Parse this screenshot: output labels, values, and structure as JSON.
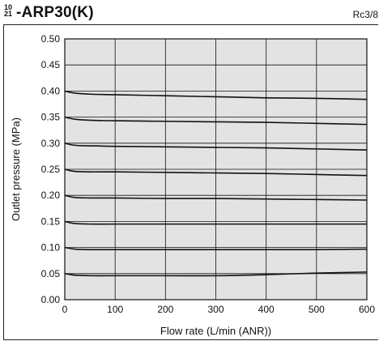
{
  "header": {
    "superscript": "10",
    "subscript": "21",
    "dash": "-",
    "model": "ARP30(K)",
    "port_size": "Rc3/8"
  },
  "chart_data": {
    "type": "line",
    "title": "ARP30(K)",
    "xlabel": "Flow rate (L/min (ANR))",
    "ylabel": "Outlet pressure (MPa)",
    "xlim": [
      0,
      600
    ],
    "ylim": [
      0.0,
      0.5
    ],
    "xticks": [
      "0",
      "100",
      "200",
      "300",
      "400",
      "500",
      "600"
    ],
    "yticks": [
      "0.00",
      "0.05",
      "0.10",
      "0.15",
      "0.20",
      "0.25",
      "0.30",
      "0.35",
      "0.40",
      "0.45",
      "0.50"
    ],
    "grid": true,
    "series": [
      {
        "x": [
          0,
          20,
          50,
          100,
          200,
          300,
          400,
          500,
          600
        ],
        "y": [
          0.4,
          0.396,
          0.394,
          0.393,
          0.391,
          0.389,
          0.387,
          0.386,
          0.384
        ]
      },
      {
        "x": [
          0,
          20,
          50,
          100,
          200,
          300,
          400,
          500,
          600
        ],
        "y": [
          0.35,
          0.346,
          0.344,
          0.343,
          0.342,
          0.341,
          0.34,
          0.338,
          0.336
        ]
      },
      {
        "x": [
          0,
          20,
          50,
          100,
          200,
          300,
          400,
          500,
          600
        ],
        "y": [
          0.3,
          0.296,
          0.295,
          0.294,
          0.293,
          0.292,
          0.291,
          0.289,
          0.287
        ]
      },
      {
        "x": [
          0,
          20,
          50,
          100,
          200,
          300,
          400,
          500,
          600
        ],
        "y": [
          0.25,
          0.246,
          0.245,
          0.245,
          0.244,
          0.243,
          0.242,
          0.24,
          0.238
        ]
      },
      {
        "x": [
          0,
          20,
          50,
          100,
          200,
          300,
          400,
          500,
          600
        ],
        "y": [
          0.2,
          0.196,
          0.195,
          0.195,
          0.194,
          0.194,
          0.193,
          0.192,
          0.191
        ]
      },
      {
        "x": [
          0,
          20,
          50,
          100,
          200,
          300,
          400,
          500,
          600
        ],
        "y": [
          0.15,
          0.146,
          0.145,
          0.145,
          0.145,
          0.145,
          0.145,
          0.145,
          0.145
        ]
      },
      {
        "x": [
          0,
          20,
          50,
          100,
          200,
          300,
          400,
          500,
          600
        ],
        "y": [
          0.1,
          0.097,
          0.096,
          0.096,
          0.096,
          0.096,
          0.096,
          0.096,
          0.097
        ]
      },
      {
        "x": [
          0,
          20,
          50,
          100,
          200,
          300,
          400,
          500,
          600
        ],
        "y": [
          0.05,
          0.047,
          0.046,
          0.046,
          0.046,
          0.046,
          0.048,
          0.051,
          0.053
        ]
      }
    ],
    "colors": {
      "plot_background": "#e3e3e3",
      "line": "#111111",
      "grid": "#111111"
    }
  }
}
